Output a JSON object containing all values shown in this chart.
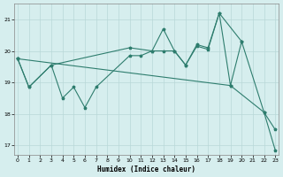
{
  "xlabel": "Humidex (Indice chaleur)",
  "line_color": "#2e7d6e",
  "bg_color": "#d6eeee",
  "grid_color": "#b8d8d8",
  "ylim": [
    16.7,
    21.5
  ],
  "yticks": [
    17,
    18,
    19,
    20,
    21
  ],
  "xlim": [
    -0.3,
    23.3
  ],
  "xticks": [
    0,
    1,
    2,
    3,
    4,
    5,
    6,
    7,
    8,
    9,
    10,
    11,
    12,
    13,
    14,
    15,
    16,
    17,
    18,
    19,
    20,
    21,
    22,
    23
  ],
  "line1_x": [
    0,
    1,
    3,
    10,
    12,
    13,
    14,
    15,
    16,
    17,
    18,
    20
  ],
  "line1_y": [
    19.75,
    18.85,
    19.55,
    20.1,
    20.0,
    20.7,
    20.0,
    19.55,
    20.2,
    20.1,
    21.2,
    20.3
  ],
  "line2_x": [
    0,
    1,
    3,
    4,
    5,
    6,
    7,
    10,
    11,
    12,
    13,
    14,
    15,
    16,
    17,
    18,
    19,
    20,
    22,
    23
  ],
  "line2_y": [
    19.75,
    18.85,
    19.55,
    18.5,
    18.85,
    18.2,
    18.85,
    19.85,
    19.85,
    20.0,
    20.0,
    20.0,
    19.55,
    20.15,
    20.05,
    21.2,
    18.9,
    20.3,
    18.05,
    17.5
  ],
  "line3_x": [
    0,
    19,
    22,
    23
  ],
  "line3_y": [
    19.75,
    18.9,
    18.05,
    16.85
  ]
}
